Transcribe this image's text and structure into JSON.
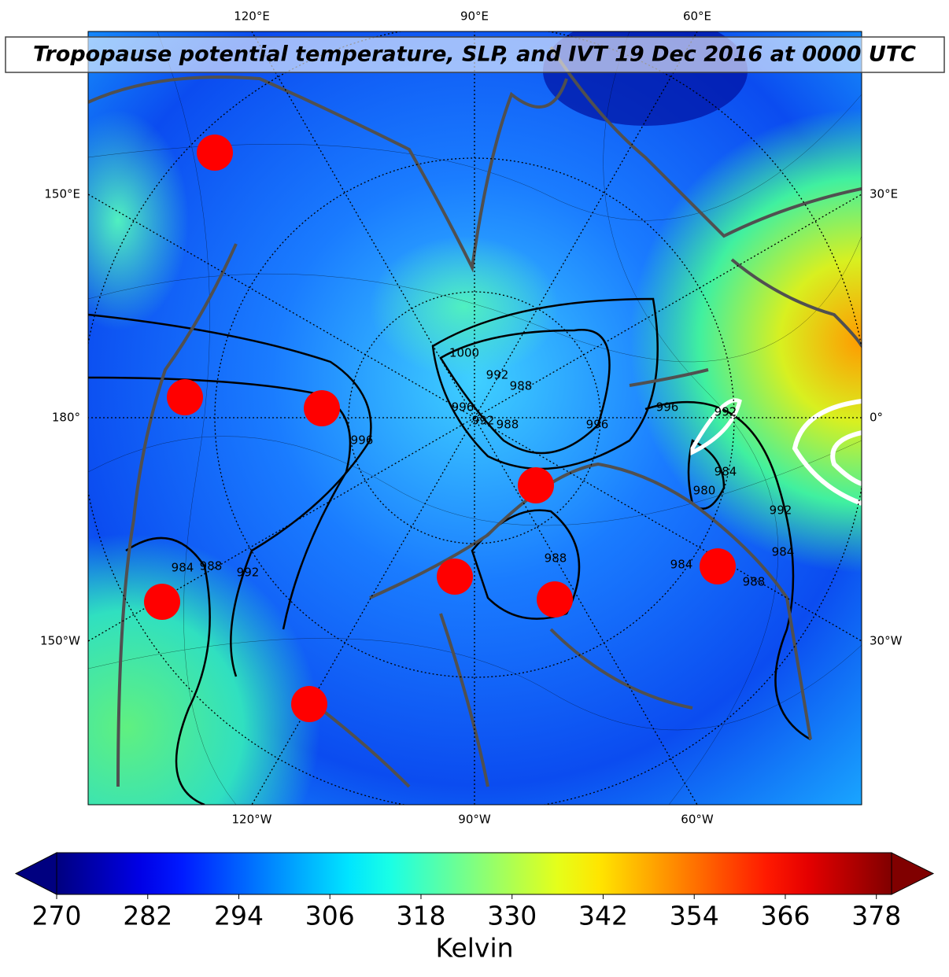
{
  "title": "Tropopause potential temperature, SLP, and IVT 19 Dec 2016 at 0000 UTC",
  "map": {
    "labels_top": [
      "120°E",
      "90°E",
      "60°E"
    ],
    "labels_left": [
      "150°E",
      "180°",
      "150°W"
    ],
    "labels_right": [
      "30°E",
      "0°",
      "30°W"
    ],
    "labels_bottom": [
      "120°W",
      "90°W",
      "60°W"
    ],
    "contour_labels": [
      "1000",
      "992",
      "988",
      "996",
      "992",
      "988",
      "996",
      "996",
      "992",
      "996",
      "984",
      "980",
      "992",
      "984",
      "988",
      "984",
      "988",
      "984",
      "988",
      "992"
    ]
  },
  "colorbar": {
    "colormap": "jet",
    "clim": [
      270,
      380
    ],
    "ticks": [
      270,
      282,
      294,
      306,
      318,
      330,
      342,
      354,
      366,
      378
    ],
    "label": "Kelvin"
  }
}
